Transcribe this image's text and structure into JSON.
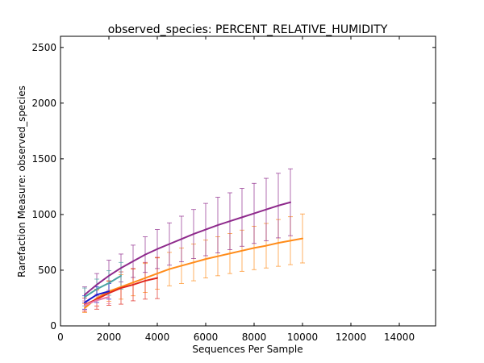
{
  "chart_data": {
    "type": "line",
    "title": "observed_species: PERCENT_RELATIVE_HUMIDITY",
    "xlabel": "Sequences Per Sample",
    "ylabel": "Rarefaction Measure: observed_species",
    "xlim": [
      0,
      15500
    ],
    "ylim": [
      0,
      2600
    ],
    "xticks": [
      0,
      2000,
      4000,
      6000,
      8000,
      10000,
      12000,
      14000
    ],
    "yticks": [
      0,
      500,
      1000,
      1500,
      2000,
      2500
    ],
    "xtick_labels": [
      "0",
      "2000",
      "4000",
      "6000",
      "8000",
      "10000",
      "12000",
      "14000"
    ],
    "ytick_labels": [
      "0",
      "500",
      "1000",
      "1500",
      "2000",
      "2500"
    ],
    "grid": false,
    "legend": "none",
    "series": [
      {
        "color": "#ff8c1a",
        "x": [
          1000,
          1500,
          2000,
          2500,
          3000,
          3500,
          4000,
          4500,
          5000,
          5500,
          6000,
          6500,
          7000,
          7500,
          8000,
          8500,
          9000,
          9500,
          10000
        ],
        "y": [
          160,
          250,
          310,
          350,
          390,
          430,
          470,
          510,
          540,
          570,
          600,
          625,
          650,
          675,
          700,
          720,
          745,
          765,
          785
        ],
        "err": [
          40,
          70,
          90,
          110,
          120,
          130,
          140,
          150,
          160,
          165,
          170,
          175,
          180,
          185,
          195,
          200,
          210,
          215,
          220
        ]
      },
      {
        "color": "#e0271e",
        "x": [
          1000,
          1500,
          2000,
          2500,
          3000,
          3500,
          4000
        ],
        "y": [
          190,
          240,
          295,
          340,
          370,
          405,
          430
        ],
        "err": [
          60,
          90,
          110,
          145,
          145,
          165,
          185
        ]
      },
      {
        "color": "#8e2a8c",
        "x": [
          1000,
          1500,
          2000,
          2500,
          3000,
          3500,
          4000,
          4500,
          5000,
          5500,
          6000,
          6500,
          7000,
          7500,
          8000,
          8500,
          9000,
          9500
        ],
        "y": [
          280,
          370,
          450,
          520,
          580,
          640,
          690,
          735,
          780,
          825,
          865,
          905,
          940,
          975,
          1010,
          1045,
          1080,
          1110
        ],
        "err": [
          70,
          100,
          140,
          125,
          145,
          160,
          175,
          190,
          205,
          220,
          235,
          250,
          255,
          260,
          270,
          280,
          290,
          300
        ]
      },
      {
        "color": "#4aa3a3",
        "x": [
          1000,
          1500,
          2000,
          2500
        ],
        "y": [
          260,
          330,
          385,
          450
        ],
        "err": [
          80,
          90,
          110,
          120
        ]
      },
      {
        "color": "#1a1acc",
        "x": [
          1000,
          1500,
          2000
        ],
        "y": [
          210,
          280,
          310
        ],
        "err": [
          60,
          70,
          70
        ]
      },
      {
        "color": "#e87aa8",
        "x": [
          1000,
          1500,
          2000
        ],
        "y": [
          185,
          230,
          260
        ],
        "err": [
          40,
          55,
          60
        ]
      }
    ]
  }
}
